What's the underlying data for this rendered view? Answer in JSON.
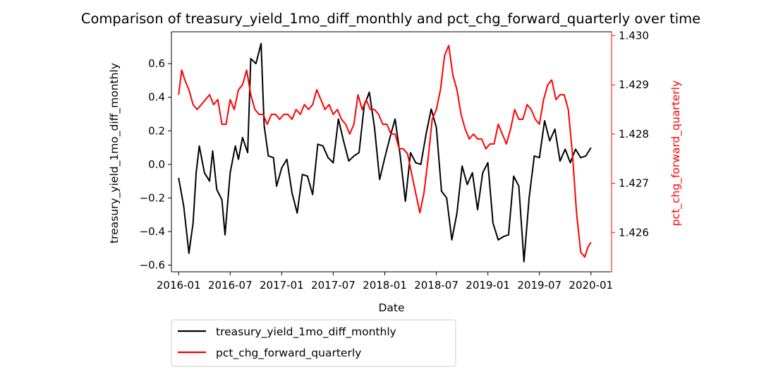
{
  "chart_data": {
    "type": "line",
    "title": "Comparison of treasury_yield_1mo_diff_monthly and pct_chg_forward_quarterly over time",
    "xlabel": "Date",
    "ylabel_left": "treasury_yield_1mo_diff_monthly",
    "ylabel_right": "pct_chg_forward_quarterly",
    "x_ticks": [
      "2016-01",
      "2016-07",
      "2017-01",
      "2017-07",
      "2018-01",
      "2018-07",
      "2019-01",
      "2019-07",
      "2020-01"
    ],
    "y_ticks_left": [
      "−0.6",
      "−0.4",
      "−0.2",
      "0.0",
      "0.2",
      "0.4",
      "0.6"
    ],
    "y_ticks_right": [
      "1.426",
      "1.427",
      "1.428",
      "1.429",
      "1.430"
    ],
    "xlim": [
      "2016-01",
      "2020-01"
    ],
    "ylim_left": [
      -0.64,
      0.79
    ],
    "ylim_right": [
      1.4252,
      1.43008
    ],
    "grid": false,
    "legend_position": "below-left",
    "series": [
      {
        "name": "treasury_yield_1mo_diff_monthly",
        "axis": "left",
        "color": "#000000",
        "x": [
          2016.0,
          2016.05,
          2016.1,
          2016.14,
          2016.17,
          2016.2,
          2016.25,
          2016.3,
          2016.33,
          2016.37,
          2016.42,
          2016.45,
          2016.5,
          2016.55,
          2016.58,
          2016.62,
          2016.67,
          2016.7,
          2016.75,
          2016.8,
          2016.83,
          2016.87,
          2016.92,
          2016.95,
          2017.0,
          2017.05,
          2017.1,
          2017.15,
          2017.2,
          2017.25,
          2017.3,
          2017.35,
          2017.4,
          2017.45,
          2017.5,
          2017.55,
          2017.6,
          2017.65,
          2017.7,
          2017.75,
          2017.8,
          2017.85,
          2017.9,
          2017.95,
          2018.0,
          2018.05,
          2018.1,
          2018.15,
          2018.2,
          2018.25,
          2018.3,
          2018.35,
          2018.4,
          2018.45,
          2018.5,
          2018.55,
          2018.6,
          2018.65,
          2018.7,
          2018.75,
          2018.8,
          2018.85,
          2018.9,
          2018.95,
          2019.0,
          2019.05,
          2019.1,
          2019.15,
          2019.2,
          2019.25,
          2019.3,
          2019.35,
          2019.4,
          2019.45,
          2019.5,
          2019.55,
          2019.6,
          2019.65,
          2019.7,
          2019.75,
          2019.8,
          2019.85,
          2019.9,
          2019.95,
          2020.0
        ],
        "y": [
          -0.08,
          -0.25,
          -0.53,
          -0.35,
          -0.05,
          0.11,
          -0.05,
          -0.1,
          0.08,
          -0.15,
          -0.21,
          -0.42,
          -0.05,
          0.11,
          0.03,
          0.16,
          0.07,
          0.63,
          0.6,
          0.72,
          0.23,
          0.05,
          0.04,
          -0.13,
          -0.02,
          0.03,
          -0.17,
          -0.29,
          -0.06,
          -0.07,
          -0.18,
          0.12,
          0.11,
          0.04,
          0.01,
          0.27,
          0.14,
          0.02,
          0.05,
          0.07,
          0.35,
          0.43,
          0.22,
          -0.09,
          0.04,
          0.16,
          0.27,
          0.05,
          -0.22,
          0.07,
          0.01,
          0.0,
          0.18,
          0.33,
          0.22,
          -0.16,
          -0.2,
          -0.45,
          -0.29,
          -0.01,
          -0.12,
          -0.05,
          -0.27,
          -0.05,
          0.01,
          -0.35,
          -0.45,
          -0.43,
          -0.42,
          -0.07,
          -0.13,
          -0.58,
          -0.2,
          0.05,
          0.04,
          0.26,
          0.14,
          0.21,
          0.02,
          0.09,
          0.01,
          0.09,
          0.04,
          0.05,
          0.1
        ]
      },
      {
        "name": "pct_chg_forward_quarterly",
        "axis": "right",
        "color": "#ff0000",
        "x": [
          2016.0,
          2016.03,
          2016.06,
          2016.1,
          2016.14,
          2016.18,
          2016.22,
          2016.26,
          2016.3,
          2016.34,
          2016.38,
          2016.42,
          2016.46,
          2016.5,
          2016.54,
          2016.58,
          2016.62,
          2016.66,
          2016.7,
          2016.74,
          2016.78,
          2016.82,
          2016.86,
          2016.9,
          2016.94,
          2016.98,
          2017.02,
          2017.06,
          2017.1,
          2017.14,
          2017.18,
          2017.22,
          2017.26,
          2017.3,
          2017.34,
          2017.38,
          2017.42,
          2017.46,
          2017.5,
          2017.54,
          2017.58,
          2017.62,
          2017.66,
          2017.7,
          2017.74,
          2017.78,
          2017.82,
          2017.86,
          2017.9,
          2017.94,
          2017.98,
          2018.02,
          2018.06,
          2018.1,
          2018.14,
          2018.18,
          2018.22,
          2018.26,
          2018.3,
          2018.34,
          2018.38,
          2018.42,
          2018.46,
          2018.5,
          2018.54,
          2018.58,
          2018.62,
          2018.66,
          2018.7,
          2018.74,
          2018.78,
          2018.82,
          2018.86,
          2018.9,
          2018.94,
          2018.98,
          2019.02,
          2019.06,
          2019.1,
          2019.14,
          2019.18,
          2019.22,
          2019.26,
          2019.3,
          2019.34,
          2019.38,
          2019.42,
          2019.46,
          2019.5,
          2019.54,
          2019.58,
          2019.62,
          2019.66,
          2019.7,
          2019.74,
          2019.78,
          2019.82,
          2019.86,
          2019.9,
          2019.94,
          2019.97,
          2020.0
        ],
        "y": [
          1.4288,
          1.4293,
          1.4291,
          1.4289,
          1.4286,
          1.4285,
          1.4286,
          1.4287,
          1.4288,
          1.4286,
          1.4287,
          1.4282,
          1.4282,
          1.4287,
          1.4285,
          1.4289,
          1.429,
          1.4293,
          1.4288,
          1.4285,
          1.4284,
          1.4284,
          1.4282,
          1.4284,
          1.4284,
          1.4283,
          1.4284,
          1.4284,
          1.4283,
          1.4285,
          1.4284,
          1.4286,
          1.4285,
          1.4286,
          1.4289,
          1.4287,
          1.4285,
          1.4286,
          1.4284,
          1.4285,
          1.4283,
          1.4282,
          1.428,
          1.4282,
          1.4288,
          1.4285,
          1.4287,
          1.4285,
          1.4285,
          1.4284,
          1.4282,
          1.4282,
          1.428,
          1.428,
          1.4277,
          1.4277,
          1.4276,
          1.4272,
          1.4268,
          1.4264,
          1.4268,
          1.4275,
          1.4283,
          1.4285,
          1.4289,
          1.4296,
          1.4298,
          1.4292,
          1.4289,
          1.4284,
          1.4281,
          1.4279,
          1.428,
          1.4279,
          1.4279,
          1.4277,
          1.4278,
          1.4278,
          1.4282,
          1.428,
          1.4278,
          1.4281,
          1.4285,
          1.4283,
          1.4283,
          1.4286,
          1.4285,
          1.4283,
          1.4282,
          1.4287,
          1.429,
          1.4291,
          1.4287,
          1.4288,
          1.4288,
          1.4285,
          1.4276,
          1.4264,
          1.4256,
          1.4255,
          1.4257,
          1.4258
        ]
      }
    ]
  }
}
